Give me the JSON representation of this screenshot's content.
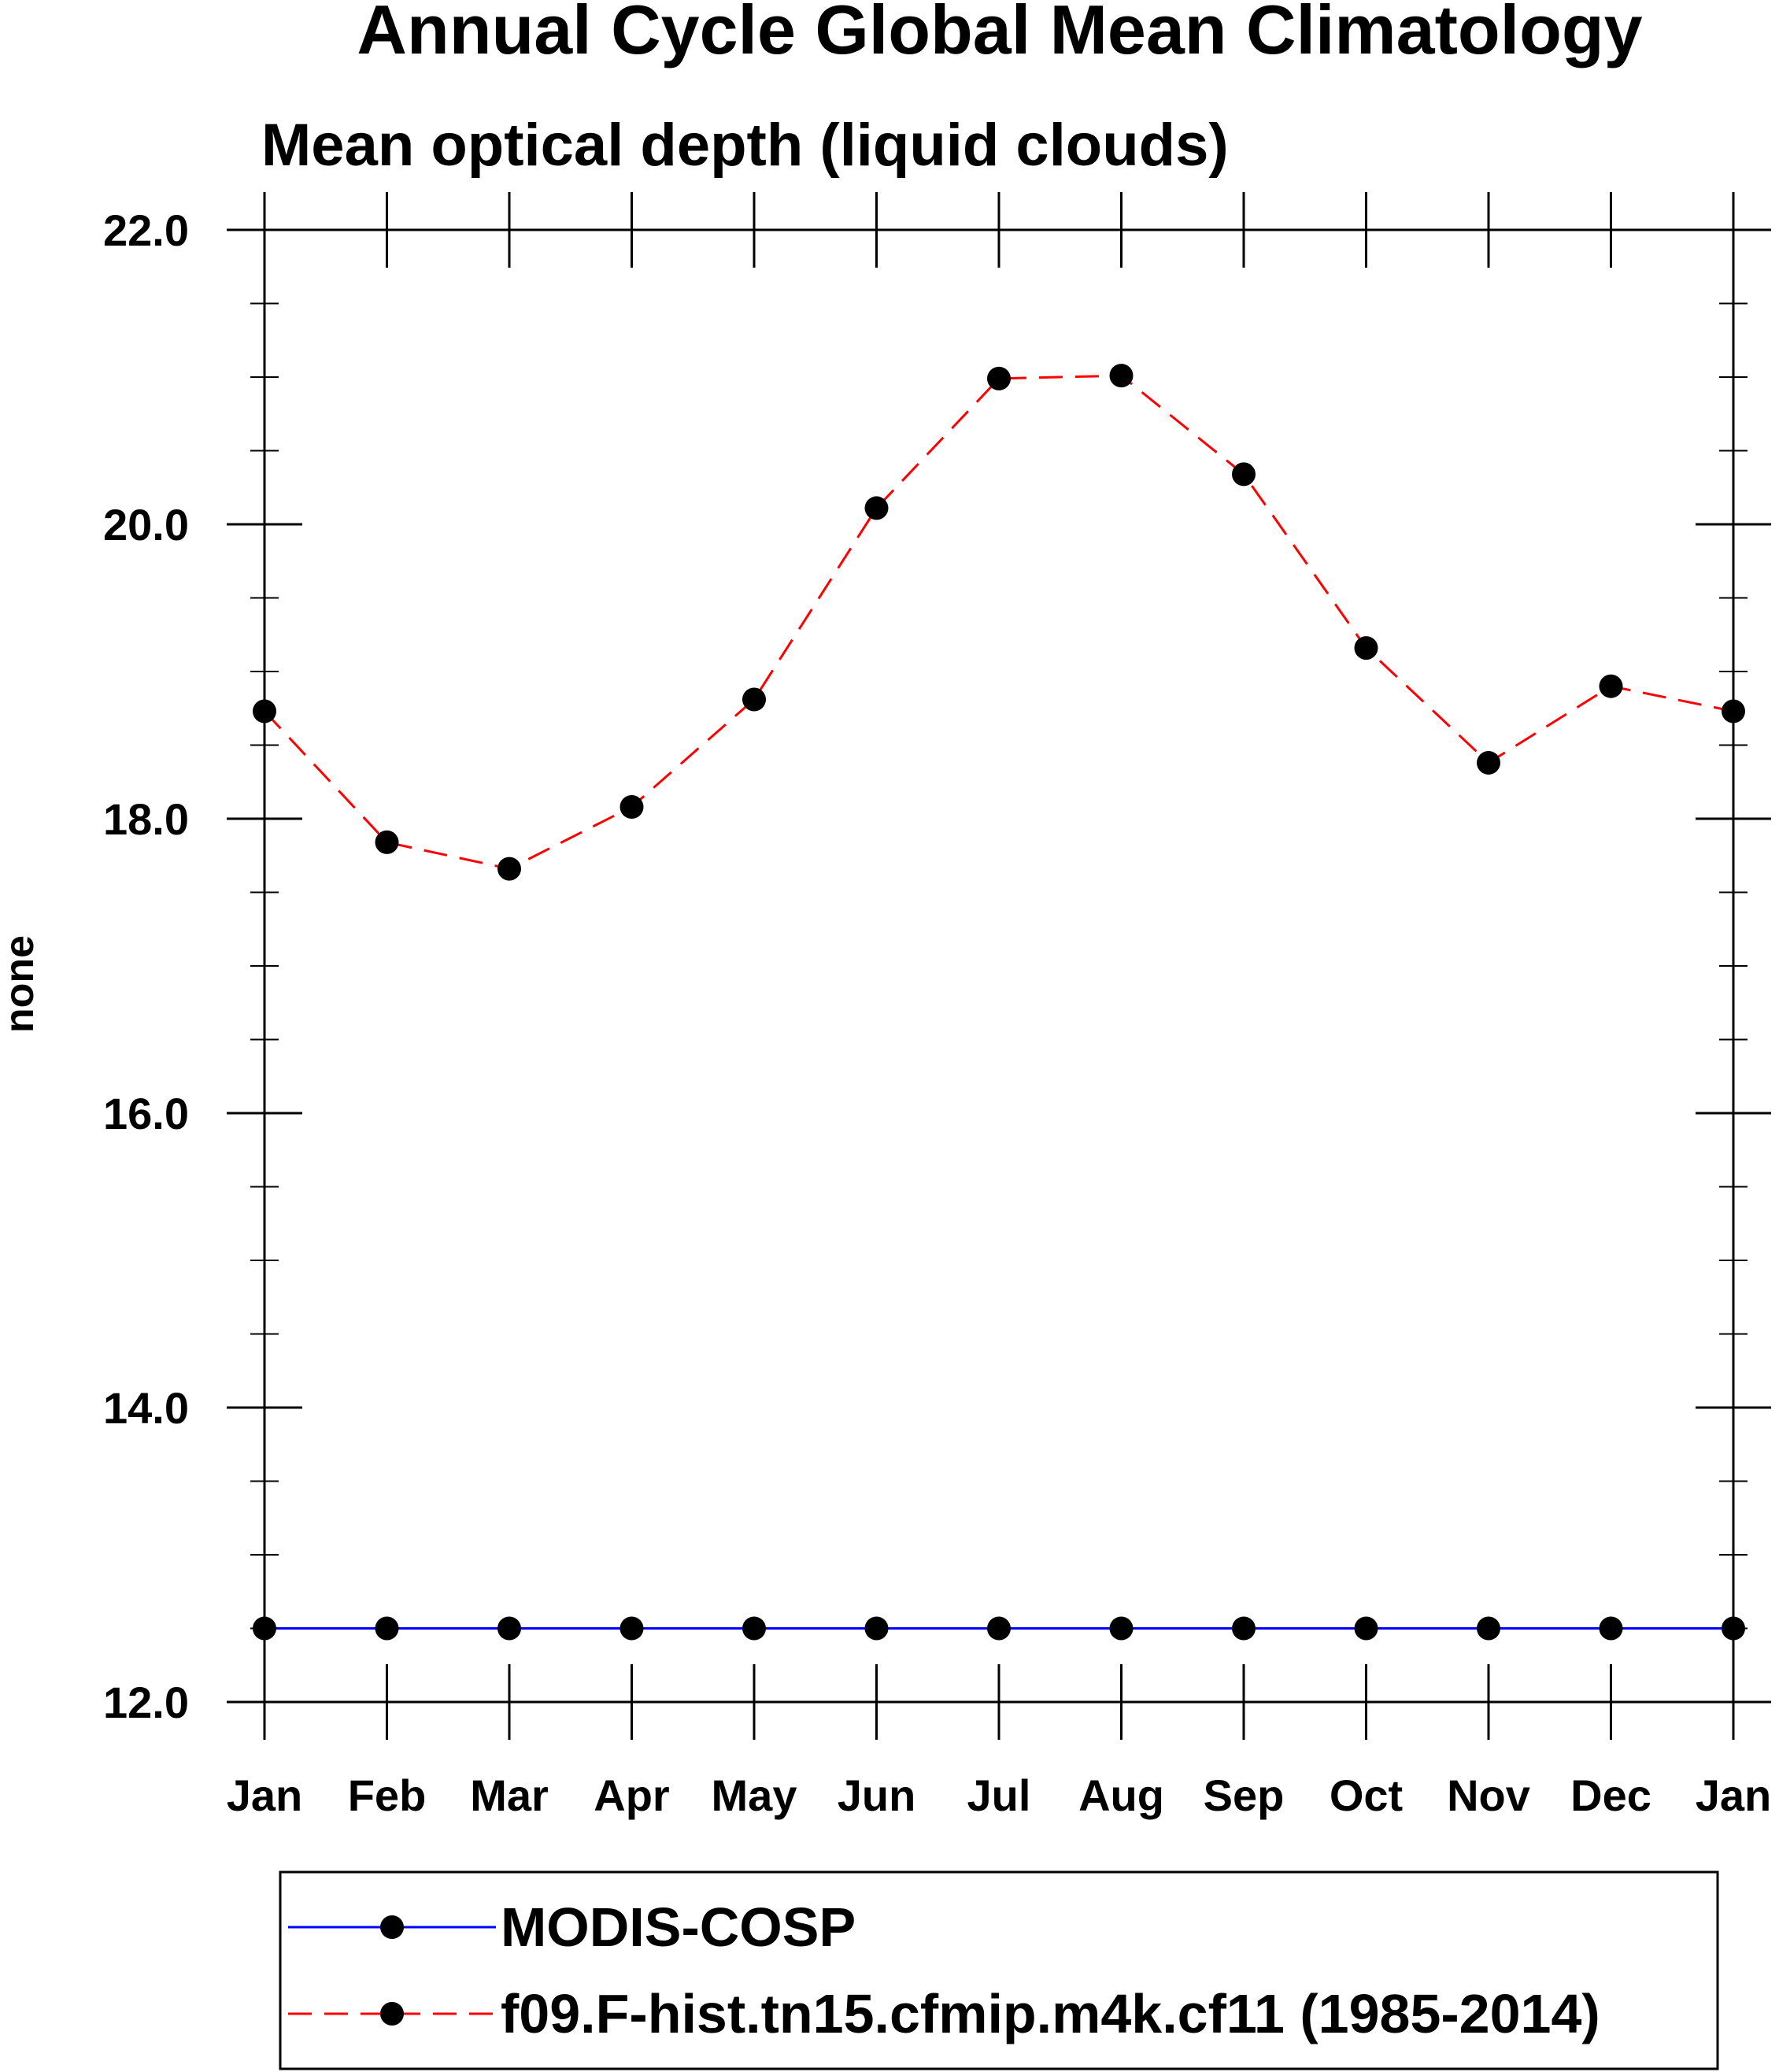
{
  "chart_data": {
    "type": "line",
    "title": "Annual Cycle Global Mean Climatology",
    "subtitle": "Mean optical depth (liquid clouds)",
    "xlabel": "",
    "ylabel": "none",
    "categories": [
      "Jan",
      "Feb",
      "Mar",
      "Apr",
      "May",
      "Jun",
      "Jul",
      "Aug",
      "Sep",
      "Oct",
      "Nov",
      "Dec",
      "Jan"
    ],
    "ylim": [
      12.0,
      22.0
    ],
    "yticks": [
      "12.0",
      "14.0",
      "16.0",
      "18.0",
      "20.0",
      "22.0"
    ],
    "grid": false,
    "legend_position": "bottom",
    "series": [
      {
        "name": "MODIS-COSP",
        "color": "#0000ff",
        "line_style": "solid",
        "marker": "filled-circle",
        "values": [
          12.5,
          12.5,
          12.5,
          12.5,
          12.5,
          12.5,
          12.5,
          12.5,
          12.5,
          12.5,
          12.5,
          12.5,
          12.5
        ]
      },
      {
        "name": "f09.F-hist.tn15.cfmip.m4k.cf11 (1985-2014)",
        "color": "#ff0000",
        "line_style": "dashed",
        "marker": "filled-circle",
        "values": [
          18.73,
          17.84,
          17.66,
          18.08,
          18.81,
          20.11,
          20.99,
          21.01,
          20.34,
          19.16,
          18.38,
          18.9,
          18.73
        ]
      }
    ]
  }
}
